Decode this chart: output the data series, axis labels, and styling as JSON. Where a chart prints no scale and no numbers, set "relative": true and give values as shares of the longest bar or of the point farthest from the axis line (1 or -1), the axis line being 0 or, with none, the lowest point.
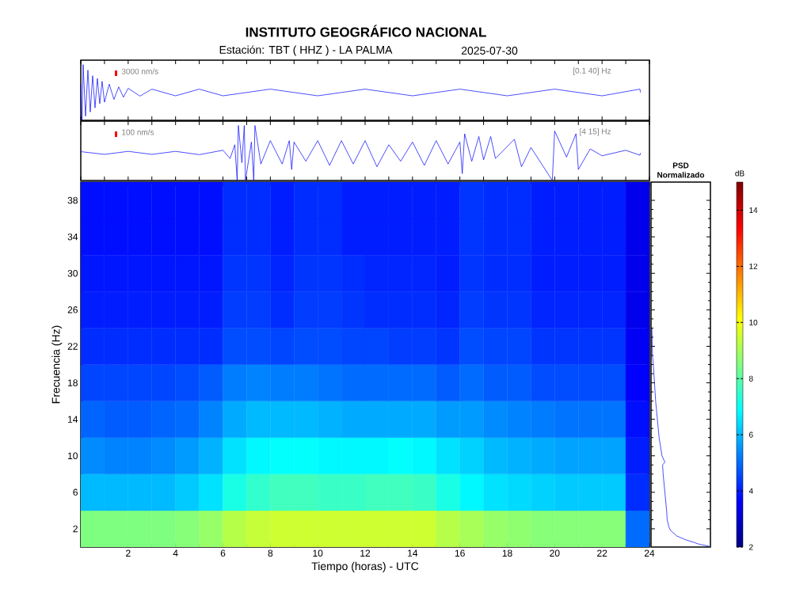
{
  "chart_data": [
    {
      "type": "line",
      "title": "INSTITUTO GEOGRÁFICO NACIONAL",
      "subtitle": "Estación:  TBT ( HHZ ) - LA PALMA",
      "annotations": [
        "3000 nm/s",
        "[0.1 40] Hz",
        "2025-07-30"
      ],
      "relative": true,
      "color": "#0000ff",
      "xlim": [
        0,
        24
      ],
      "xticks": [
        0,
        1,
        2,
        3,
        4,
        5,
        6,
        7,
        8,
        9,
        10,
        11,
        12,
        13,
        14,
        15,
        16,
        17,
        18,
        19,
        20,
        21,
        22,
        23,
        24
      ],
      "tick_labels": false,
      "x": [
        0,
        0.05,
        0.1,
        0.2,
        0.3,
        0.4,
        0.5,
        0.6,
        0.7,
        0.8,
        0.9,
        1.0,
        1.2,
        1.4,
        1.6,
        1.8,
        2.0,
        2.5,
        3,
        4,
        5,
        6,
        8,
        10,
        12,
        14,
        16,
        18,
        20,
        22,
        23.6,
        23.62
      ],
      "values": [
        0.65,
        0,
        1,
        0.075,
        0.9,
        0.15,
        0.8,
        0.225,
        0.75,
        0.3,
        0.7,
        0.325,
        0.65,
        0.375,
        0.6,
        0.415,
        0.575,
        0.435,
        0.56,
        0.44,
        0.56,
        0.44,
        0.56,
        0.44,
        0.56,
        0.44,
        0.56,
        0.44,
        0.56,
        0.44,
        0.56,
        0.5
      ]
    },
    {
      "type": "line",
      "annotations": [
        "100 nm/s",
        "[4 15] Hz"
      ],
      "relative": true,
      "color": "#0000ff",
      "xlim": [
        0,
        24
      ],
      "xticks": [
        0,
        1,
        2,
        3,
        4,
        5,
        6,
        7,
        8,
        9,
        10,
        11,
        12,
        13,
        14,
        15,
        16,
        17,
        18,
        19,
        20,
        21,
        22,
        23,
        24
      ],
      "tick_labels": false,
      "x": [
        0,
        1,
        2,
        3,
        4,
        5,
        6,
        6.3,
        6.5,
        6.6,
        6.65,
        6.8,
        6.9,
        6.95,
        7.2,
        7.3,
        7.35,
        7.6,
        8,
        8.5,
        8.8,
        8.9,
        9,
        9.5,
        10,
        10.5,
        11,
        11.5,
        12,
        12.5,
        13,
        13.5,
        14,
        14.5,
        15,
        15.5,
        16,
        16.1,
        16.2,
        16.5,
        16.8,
        17,
        17.3,
        17.5,
        18.3,
        18.6,
        19,
        19.9,
        20,
        20.5,
        20.9,
        21,
        21.5,
        22,
        23,
        23.6,
        23.62
      ],
      "values": [
        0.525,
        0.475,
        0.53,
        0.475,
        0.53,
        0.47,
        0.55,
        0.4,
        0.65,
        0,
        1,
        0.325,
        1,
        0,
        0.7,
        0,
        1,
        0.3,
        0.725,
        0.3,
        0.725,
        0.2,
        0.7,
        0.35,
        0.725,
        0.275,
        0.725,
        0.3,
        0.725,
        0.25,
        0.65,
        0.35,
        0.7,
        0.275,
        0.725,
        0.3,
        0.7,
        0.125,
        0.85,
        0.35,
        0.8,
        0.375,
        0.8,
        0.4,
        0.75,
        0.25,
        0.6,
        0,
        0.9,
        0.425,
        0.85,
        0.2,
        0.575,
        0.45,
        0.55,
        0.46,
        0.5
      ]
    },
    {
      "type": "heatmap",
      "xlabel": "Tiempo (horas) - UTC",
      "ylabel": "Frecuencia  (Hz)",
      "clabel": "dB",
      "clim": [
        2,
        15
      ],
      "cticks": [
        2,
        4,
        6,
        8,
        10,
        12,
        14
      ],
      "xlim": [
        0,
        24
      ],
      "xticks": [
        2,
        4,
        6,
        8,
        10,
        12,
        14,
        16,
        18,
        20,
        22,
        24
      ],
      "ylim": [
        0,
        40
      ],
      "yticks": [
        2,
        6,
        10,
        14,
        18,
        22,
        26,
        30,
        34,
        38
      ],
      "x": [
        0.5,
        1.5,
        2.5,
        3.5,
        4.5,
        5.5,
        6.5,
        7.5,
        8.5,
        9.5,
        10.5,
        11.5,
        12.5,
        13.5,
        14.5,
        15.5,
        16.5,
        17.5,
        18.5,
        19.5,
        20.5,
        21.5,
        22.5,
        23.5
      ],
      "y": [
        38,
        34,
        30,
        26,
        22,
        18,
        14,
        10,
        6,
        2
      ],
      "cells": [
        [
          3.8,
          3.8,
          3.8,
          3.8,
          3.8,
          3.8,
          4.2,
          4.2,
          4,
          4.2,
          4.2,
          4,
          4,
          4,
          4,
          4,
          4.3,
          4.2,
          4.2,
          4,
          4,
          4,
          4,
          3.4
        ],
        [
          3.8,
          3.8,
          3.8,
          3.8,
          3.8,
          3.8,
          4.2,
          4.2,
          4,
          4.2,
          4.2,
          4,
          4,
          4,
          4,
          4,
          4.3,
          4.2,
          4.2,
          4,
          4,
          4,
          4,
          3.4
        ],
        [
          3.9,
          3.9,
          3.9,
          3.9,
          3.9,
          3.9,
          4.3,
          4.3,
          4.1,
          4.3,
          4.3,
          4.2,
          4.1,
          4.1,
          4.1,
          4,
          4.3,
          4.2,
          4.2,
          4,
          4,
          4,
          4,
          3.4
        ],
        [
          4,
          4,
          4,
          4,
          4,
          4,
          4.4,
          4.4,
          4.2,
          4.4,
          4.4,
          4.3,
          4.2,
          4.2,
          4.2,
          4.1,
          4.4,
          4.3,
          4.3,
          4.1,
          4.1,
          4.1,
          4.1,
          3.4
        ],
        [
          4.2,
          4.2,
          4.2,
          4.2,
          4.2,
          4.2,
          4.6,
          4.6,
          4.5,
          4.6,
          4.6,
          4.5,
          4.5,
          4.4,
          4.4,
          4.3,
          4.6,
          4.5,
          4.5,
          4.3,
          4.3,
          4.3,
          4.3,
          3.5
        ],
        [
          4.5,
          4.5,
          4.5,
          4.5,
          4.6,
          4.8,
          5.2,
          5.3,
          5.2,
          5.2,
          5.1,
          5,
          5,
          5,
          5,
          4.8,
          5,
          4.8,
          4.8,
          4.6,
          4.6,
          4.6,
          4.6,
          3.6
        ],
        [
          4.9,
          4.8,
          4.8,
          4.9,
          5,
          5.3,
          5.8,
          6,
          6,
          6,
          5.9,
          5.8,
          5.8,
          5.8,
          5.8,
          5.6,
          5.6,
          5.4,
          5.3,
          5.2,
          5.1,
          5.1,
          5.1,
          3.8
        ],
        [
          5.4,
          5.3,
          5.3,
          5.4,
          5.6,
          5.9,
          6.5,
          6.8,
          6.9,
          6.9,
          6.8,
          6.8,
          6.8,
          6.9,
          6.8,
          6.5,
          6.3,
          6,
          5.9,
          5.8,
          5.7,
          5.7,
          5.7,
          4
        ],
        [
          6,
          6,
          6,
          6,
          6.2,
          6.5,
          7.2,
          7.5,
          7.7,
          7.7,
          7.6,
          7.6,
          7.7,
          7.7,
          7.6,
          7.2,
          6.8,
          6.5,
          6.4,
          6.3,
          6.2,
          6.2,
          6.2,
          4.2
        ],
        [
          8.5,
          8.5,
          8.5,
          8.5,
          8.6,
          8.8,
          9.2,
          9.4,
          9.5,
          9.5,
          9.5,
          9.5,
          9.5,
          9.5,
          9.5,
          9.2,
          9,
          8.8,
          8.7,
          8.6,
          8.6,
          8.6,
          8.6,
          5
        ]
      ]
    },
    {
      "type": "line",
      "title": "PSD Normalizado",
      "orientation": "horizontal",
      "relative": true,
      "color": "#0000ff",
      "ylim": [
        0,
        40
      ],
      "yticks": [
        2,
        6,
        10,
        14,
        18,
        22,
        26,
        30,
        34,
        38
      ],
      "tick_labels": false,
      "x": [
        24,
        21,
        20,
        18,
        16,
        14,
        12,
        10,
        9.3,
        9,
        8,
        6,
        4,
        3,
        2.2,
        1.8,
        1.2,
        0.8,
        0.5,
        0.3,
        0.1,
        0
      ],
      "values": [
        0.015,
        0.025,
        0.04,
        0.06,
        0.08,
        0.11,
        0.14,
        0.19,
        0.24,
        0.2,
        0.21,
        0.24,
        0.27,
        0.28,
        0.31,
        0.34,
        0.45,
        0.6,
        0.75,
        0.84,
        1,
        0.98
      ]
    }
  ]
}
